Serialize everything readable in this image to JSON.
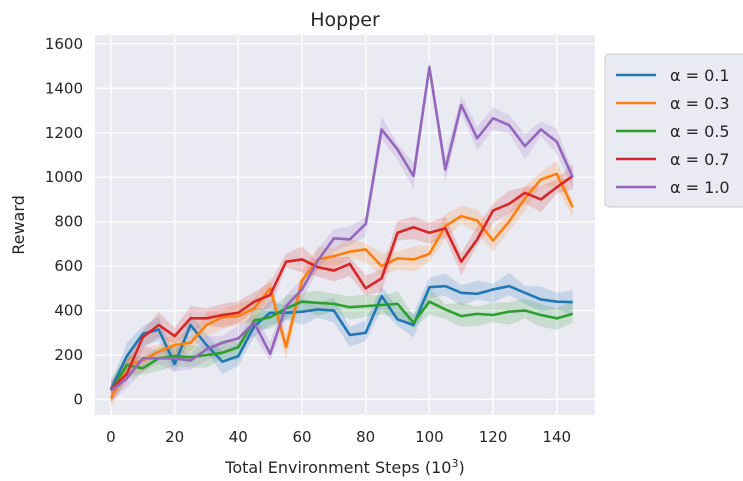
{
  "chart_data": {
    "type": "line",
    "title": "Hopper",
    "xlabel": "Total Environment Steps (10",
    "xlabel_sup": "3",
    "xlabel_suffix": ")",
    "ylabel": "Reward",
    "xlim": [
      -5,
      152
    ],
    "ylim": [
      -70,
      1640
    ],
    "xticks": [
      0,
      20,
      40,
      60,
      80,
      100,
      120,
      140
    ],
    "yticks": [
      0,
      200,
      400,
      600,
      800,
      1000,
      1200,
      1400,
      1600
    ],
    "grid": true,
    "legend_position": "right-outside-top",
    "x": [
      0,
      5,
      10,
      15,
      20,
      25,
      30,
      35,
      40,
      45,
      50,
      55,
      60,
      65,
      70,
      75,
      80,
      85,
      90,
      95,
      100,
      105,
      110,
      115,
      120,
      125,
      130,
      135,
      140,
      145
    ],
    "series": [
      {
        "name": "α = 0.1",
        "color": "#1f77b4",
        "values": [
          45,
          195,
          295,
          315,
          160,
          335,
          245,
          170,
          195,
          330,
          390,
          390,
          395,
          405,
          400,
          290,
          300,
          465,
          360,
          335,
          505,
          510,
          480,
          475,
          495,
          510,
          480,
          450,
          440,
          438
        ]
      },
      {
        "name": "α = 0.3",
        "color": "#ff7f0e",
        "values": [
          5,
          155,
          175,
          215,
          245,
          255,
          335,
          370,
          375,
          410,
          500,
          235,
          535,
          630,
          645,
          665,
          675,
          600,
          635,
          630,
          655,
          780,
          825,
          805,
          715,
          800,
          905,
          990,
          1015,
          865
        ]
      },
      {
        "name": "α = 0.5",
        "color": "#2ca02c",
        "values": [
          40,
          155,
          140,
          185,
          195,
          190,
          200,
          210,
          235,
          355,
          370,
          410,
          440,
          435,
          430,
          415,
          420,
          425,
          430,
          345,
          440,
          405,
          375,
          385,
          380,
          395,
          400,
          380,
          365,
          385
        ]
      },
      {
        "name": "α = 0.7",
        "color": "#d62728",
        "values": [
          45,
          115,
          280,
          335,
          285,
          365,
          365,
          380,
          390,
          440,
          470,
          620,
          630,
          595,
          580,
          610,
          500,
          545,
          750,
          775,
          750,
          770,
          620,
          720,
          850,
          880,
          930,
          900,
          955,
          1005
        ]
      },
      {
        "name": "α = 1.0",
        "color": "#9467bd",
        "values": [
          40,
          95,
          185,
          185,
          185,
          175,
          225,
          255,
          275,
          345,
          205,
          420,
          495,
          625,
          725,
          720,
          790,
          1215,
          1125,
          1005,
          1495,
          1035,
          1325,
          1175,
          1265,
          1235,
          1140,
          1215,
          1160,
          1000
        ]
      }
    ]
  }
}
